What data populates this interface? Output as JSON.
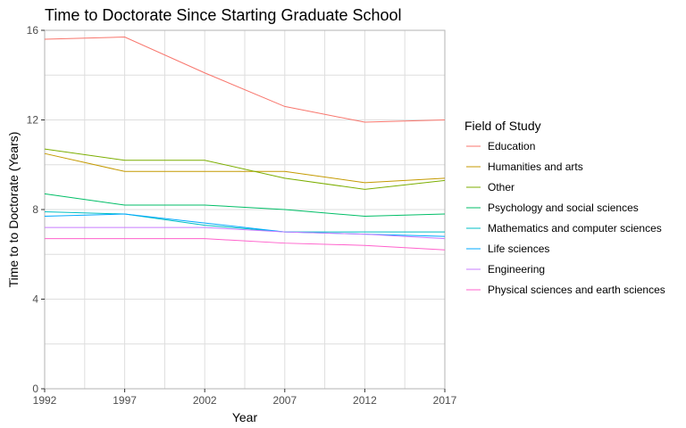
{
  "chart_data": {
    "type": "line",
    "title": "Time to Doctorate Since Starting Graduate School",
    "xlabel": "Year",
    "ylabel": "Time to to Doctorate (Years)",
    "x": [
      1992,
      1997,
      2002,
      2007,
      2012,
      2017
    ],
    "xlim": [
      1992,
      2017
    ],
    "ylim": [
      0,
      16
    ],
    "xticks": [
      "1992",
      "1997",
      "2002",
      "2007",
      "2012",
      "2017"
    ],
    "yticks": [
      "0",
      "4",
      "8",
      "12",
      "16"
    ],
    "grid": true,
    "legend": {
      "title": "Field of Study",
      "position": "right"
    },
    "series": [
      {
        "name": "Education",
        "color": "#F8766D",
        "values": [
          15.6,
          15.7,
          14.1,
          12.6,
          11.9,
          12.0
        ]
      },
      {
        "name": "Humanities and arts",
        "color": "#C49A00",
        "values": [
          10.5,
          9.7,
          9.7,
          9.7,
          9.2,
          9.4
        ]
      },
      {
        "name": "Other",
        "color": "#7CAE00",
        "values": [
          10.7,
          10.2,
          10.2,
          9.4,
          8.9,
          9.3
        ]
      },
      {
        "name": "Psychology and social sciences",
        "color": "#00BE67",
        "values": [
          8.7,
          8.2,
          8.2,
          8.0,
          7.7,
          7.8
        ]
      },
      {
        "name": "Mathematics and computer sciences",
        "color": "#00BFC4",
        "values": [
          7.9,
          7.8,
          7.3,
          7.0,
          7.0,
          7.0
        ]
      },
      {
        "name": "Life sciences",
        "color": "#00A9FF",
        "values": [
          7.7,
          7.8,
          7.4,
          7.0,
          6.9,
          6.8
        ]
      },
      {
        "name": "Engineering",
        "color": "#C77CFF",
        "values": [
          7.2,
          7.2,
          7.2,
          7.0,
          6.9,
          6.7
        ]
      },
      {
        "name": "Physical sciences and earth sciences",
        "color": "#FF61CC",
        "values": [
          6.7,
          6.7,
          6.7,
          6.5,
          6.4,
          6.2
        ]
      }
    ]
  }
}
